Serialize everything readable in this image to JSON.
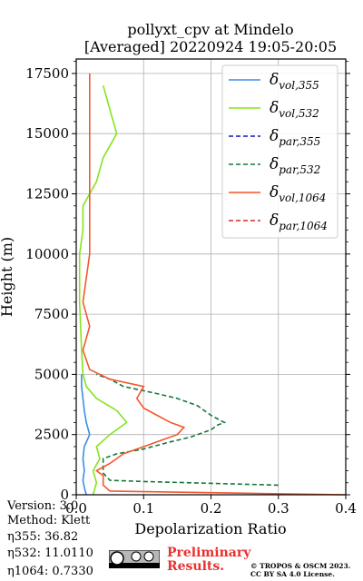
{
  "chart_data": {
    "type": "line",
    "title": "pollyxt_cpv at Mindelo",
    "subtitle": "[Averaged] 20220924 19:05-20:05",
    "xlabel": "Depolarization Ratio",
    "ylabel": "Height (m)",
    "xlim": [
      0,
      0.4
    ],
    "ylim": [
      0,
      17500
    ],
    "xticks": [
      "0.0",
      "0.1",
      "0.2",
      "0.3",
      "0.4"
    ],
    "yticks": [
      "0",
      "2500",
      "5000",
      "7500",
      "10000",
      "12500",
      "15000",
      "17500"
    ],
    "grid": true,
    "legend_position": "top-right",
    "series": [
      {
        "name": "δvol,355",
        "legend_base": "δ",
        "legend_sub": "vol,355",
        "color": "#3a8ee6",
        "dash": "solid",
        "points": [
          [
            0.015,
            0
          ],
          [
            0.012,
            300
          ],
          [
            0.01,
            600
          ],
          [
            0.012,
            1000
          ],
          [
            0.01,
            1500
          ],
          [
            0.012,
            2000
          ],
          [
            0.02,
            2500
          ],
          [
            0.015,
            3000
          ],
          [
            0.012,
            3500
          ],
          [
            0.01,
            4000
          ],
          [
            0.008,
            4500
          ],
          [
            0.008,
            5000
          ]
        ]
      },
      {
        "name": "δvol,532",
        "legend_base": "δ",
        "legend_sub": "vol,532",
        "color": "#85e41c",
        "dash": "solid",
        "points": [
          [
            0.025,
            0
          ],
          [
            0.03,
            500
          ],
          [
            0.025,
            1000
          ],
          [
            0.035,
            1500
          ],
          [
            0.03,
            2000
          ],
          [
            0.05,
            2500
          ],
          [
            0.075,
            3000
          ],
          [
            0.06,
            3500
          ],
          [
            0.03,
            4000
          ],
          [
            0.015,
            4500
          ],
          [
            0.01,
            5000
          ],
          [
            0.008,
            6000
          ],
          [
            0.005,
            8000
          ],
          [
            0.005,
            10000
          ],
          [
            0.01,
            11000
          ],
          [
            0.01,
            12000
          ],
          [
            0.02,
            12500
          ],
          [
            0.03,
            13000
          ],
          [
            0.04,
            14000
          ],
          [
            0.06,
            15000
          ],
          [
            0.05,
            16000
          ],
          [
            0.04,
            17000
          ]
        ]
      },
      {
        "name": "δpar,355",
        "legend_base": "δ",
        "legend_sub": "par,355",
        "color": "#1010d0",
        "dash": "dashed",
        "points": []
      },
      {
        "name": "δpar,532",
        "legend_base": "δ",
        "legend_sub": "par,532",
        "color": "#13783b",
        "dash": "dashed",
        "points": [
          [
            0.3,
            400
          ],
          [
            0.1,
            550
          ],
          [
            0.05,
            600
          ],
          [
            0.04,
            900
          ],
          [
            0.04,
            1500
          ],
          [
            0.06,
            1700
          ],
          [
            0.1,
            1900
          ],
          [
            0.14,
            2200
          ],
          [
            0.17,
            2400
          ],
          [
            0.2,
            2700
          ],
          [
            0.21,
            2900
          ],
          [
            0.22,
            3000
          ],
          [
            0.2,
            3300
          ],
          [
            0.18,
            3700
          ],
          [
            0.15,
            4000
          ],
          [
            0.12,
            4200
          ],
          [
            0.07,
            4500
          ],
          [
            0.05,
            4800
          ],
          [
            0.03,
            5000
          ]
        ]
      },
      {
        "name": "δvol,1064",
        "legend_base": "δ",
        "legend_sub": "vol,1064",
        "color": "#f5562f",
        "dash": "solid",
        "points": [
          [
            0.4,
            0
          ],
          [
            0.05,
            150
          ],
          [
            0.04,
            400
          ],
          [
            0.04,
            800
          ],
          [
            0.03,
            1000
          ],
          [
            0.05,
            1300
          ],
          [
            0.07,
            1700
          ],
          [
            0.1,
            2000
          ],
          [
            0.13,
            2300
          ],
          [
            0.15,
            2500
          ],
          [
            0.16,
            2800
          ],
          [
            0.14,
            3000
          ],
          [
            0.12,
            3300
          ],
          [
            0.1,
            3600
          ],
          [
            0.09,
            4000
          ],
          [
            0.1,
            4500
          ],
          [
            0.05,
            4800
          ],
          [
            0.02,
            5200
          ],
          [
            0.01,
            6000
          ],
          [
            0.02,
            7000
          ],
          [
            0.01,
            8000
          ],
          [
            0.015,
            9000
          ],
          [
            0.02,
            10000
          ],
          [
            0.02,
            12000
          ],
          [
            0.02,
            14000
          ],
          [
            0.02,
            16000
          ],
          [
            0.02,
            17500
          ]
        ]
      },
      {
        "name": "δpar,1064",
        "legend_base": "δ",
        "legend_sub": "par,1064",
        "color": "#d62828",
        "dash": "dashed",
        "points": []
      }
    ]
  },
  "info": {
    "version": "Version: 3.0",
    "method": "Method: Klett",
    "eta355": "η355:  36.82",
    "eta532": "η532: 11.0110",
    "eta1064": "η1064: 0.7330"
  },
  "footer": {
    "preliminary_line1": "Preliminary",
    "preliminary_line2": "Results.",
    "copyright_line1": "© TROPOS & OSCM 2023.",
    "copyright_line2": "CC BY SA 4.0 License."
  }
}
